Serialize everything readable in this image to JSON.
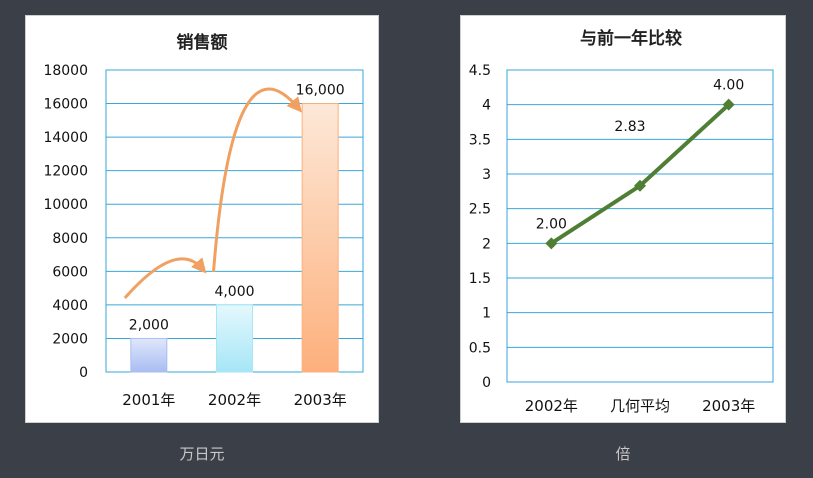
{
  "chart_data": [
    {
      "type": "bar",
      "title": "销售额",
      "categories": [
        "2001年",
        "2002年",
        "2003年"
      ],
      "values": [
        2000,
        4000,
        16000
      ],
      "data_labels": [
        "2,000",
        "4,000",
        "16,000"
      ],
      "ylim": [
        0,
        18000
      ],
      "yticks": [
        0,
        2000,
        4000,
        6000,
        8000,
        10000,
        12000,
        14000,
        16000,
        18000
      ],
      "ytick_labels": [
        "0",
        "2000",
        "4000",
        "6000",
        "8000",
        "10000",
        "12000",
        "14000",
        "16000",
        "18000"
      ],
      "unit": "万日元",
      "grid": true,
      "bar_colors": [
        "#a9bdf2",
        "#a6e6f7",
        "#fdb07c"
      ],
      "arrow_color": "#f0a060"
    },
    {
      "type": "line",
      "title": "与前一年比较",
      "categories": [
        "2002年",
        "几何平均",
        "2003年"
      ],
      "values": [
        2.0,
        2.83,
        4.0
      ],
      "data_labels": [
        "2.00",
        "2.83",
        "4.00"
      ],
      "ylim": [
        0,
        4.5
      ],
      "yticks": [
        0,
        0.5,
        1,
        1.5,
        2,
        2.5,
        3,
        3.5,
        4,
        4.5
      ],
      "ytick_labels": [
        "0",
        "0.5",
        "1",
        "1.5",
        "2",
        "2.5",
        "3",
        "3.5",
        "4",
        "4.5"
      ],
      "unit": "倍",
      "grid": true,
      "line_color": "#4f7f34"
    }
  ]
}
